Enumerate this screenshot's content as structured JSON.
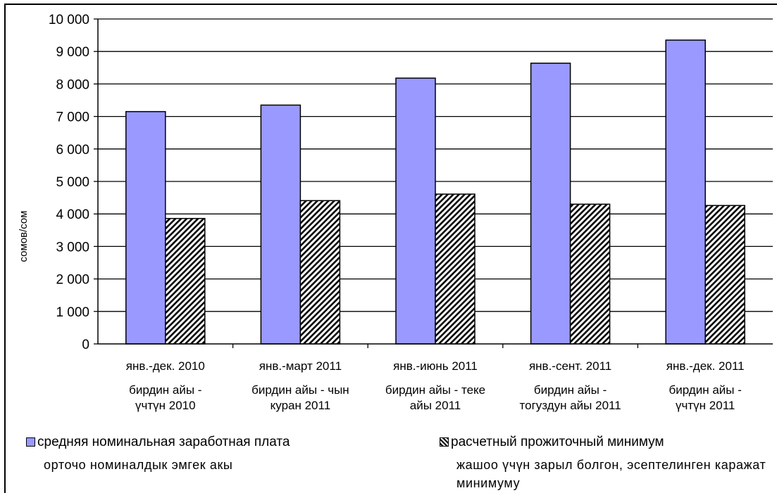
{
  "chart_data": {
    "type": "bar",
    "ylabel": "сомов/сом",
    "ylim": [
      0,
      10000
    ],
    "yticks": [
      0,
      1000,
      2000,
      3000,
      4000,
      5000,
      6000,
      7000,
      8000,
      9000,
      10000
    ],
    "ytick_labels": [
      "0",
      "1 000",
      "2 000",
      "3 000",
      "4 000",
      "5 000",
      "6 000",
      "7 000",
      "8 000",
      "9 000",
      "10 000"
    ],
    "categories": [
      {
        "label": "янв.-дек. 2010",
        "sublabel": [
          "бирдин айы -",
          "үчтүн 2010"
        ]
      },
      {
        "label": "янв.-март 2011",
        "sublabel": [
          "бирдин айы - чын",
          "куран 2011"
        ]
      },
      {
        "label": "янв.-июнь 2011",
        "sublabel": [
          "бирдин айы - теке",
          "айы 2011"
        ]
      },
      {
        "label": "янв.-сент. 2011",
        "sublabel": [
          "бирдин айы -",
          "тогуздун айы 2011"
        ]
      },
      {
        "label": "янв.-дек. 2011",
        "sublabel": [
          "бирдин айы -",
          "үчтүн 2011"
        ]
      }
    ],
    "series": [
      {
        "name": "средняя номинальная заработная плата",
        "color": "#9999ff",
        "pattern": "solid",
        "values": [
          7150,
          7350,
          8180,
          8640,
          9350
        ]
      },
      {
        "name": "расчетный прожиточный минимум",
        "color": "#000000",
        "pattern": "diagonal-hatch",
        "values": [
          3860,
          4410,
          4610,
          4300,
          4260
        ]
      }
    ],
    "grid": true,
    "legend": "bottom"
  },
  "legend": {
    "items": [
      {
        "label": "средняя номинальная заработная плата",
        "sublabel": "орточо номиналдык эмгек акы"
      },
      {
        "label": "расчетный прожиточный минимум",
        "sublabel": "жашоо үчүн зарыл болгон, эсептелинген каражат минимуму"
      }
    ]
  }
}
